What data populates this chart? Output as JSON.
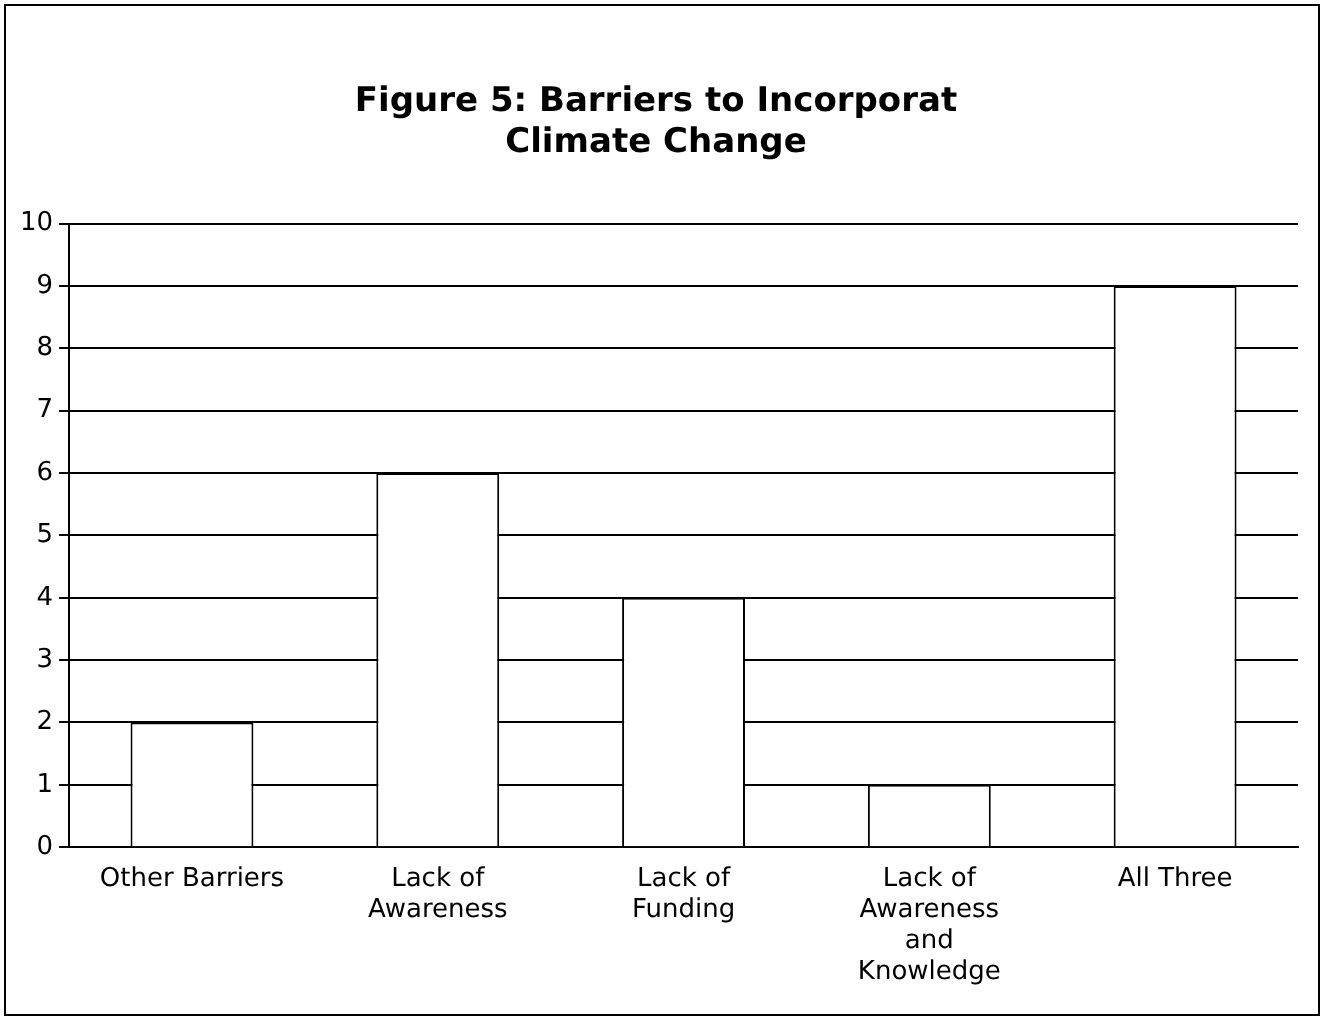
{
  "chart_data": {
    "type": "bar",
    "title": "Figure 5: Barriers to Incorporat\nClimate Change",
    "categories": [
      "Other Barriers",
      "Lack of Awareness",
      "Lack of Funding",
      "Lack of Awareness and Knowledge",
      "All Three"
    ],
    "values": [
      2,
      6,
      4,
      1,
      9
    ],
    "color": "#ffffff",
    "ylim": [
      0,
      10
    ],
    "yticks": [
      0,
      1,
      2,
      3,
      4,
      5,
      6,
      7,
      8,
      9,
      10
    ],
    "grid": "y"
  }
}
